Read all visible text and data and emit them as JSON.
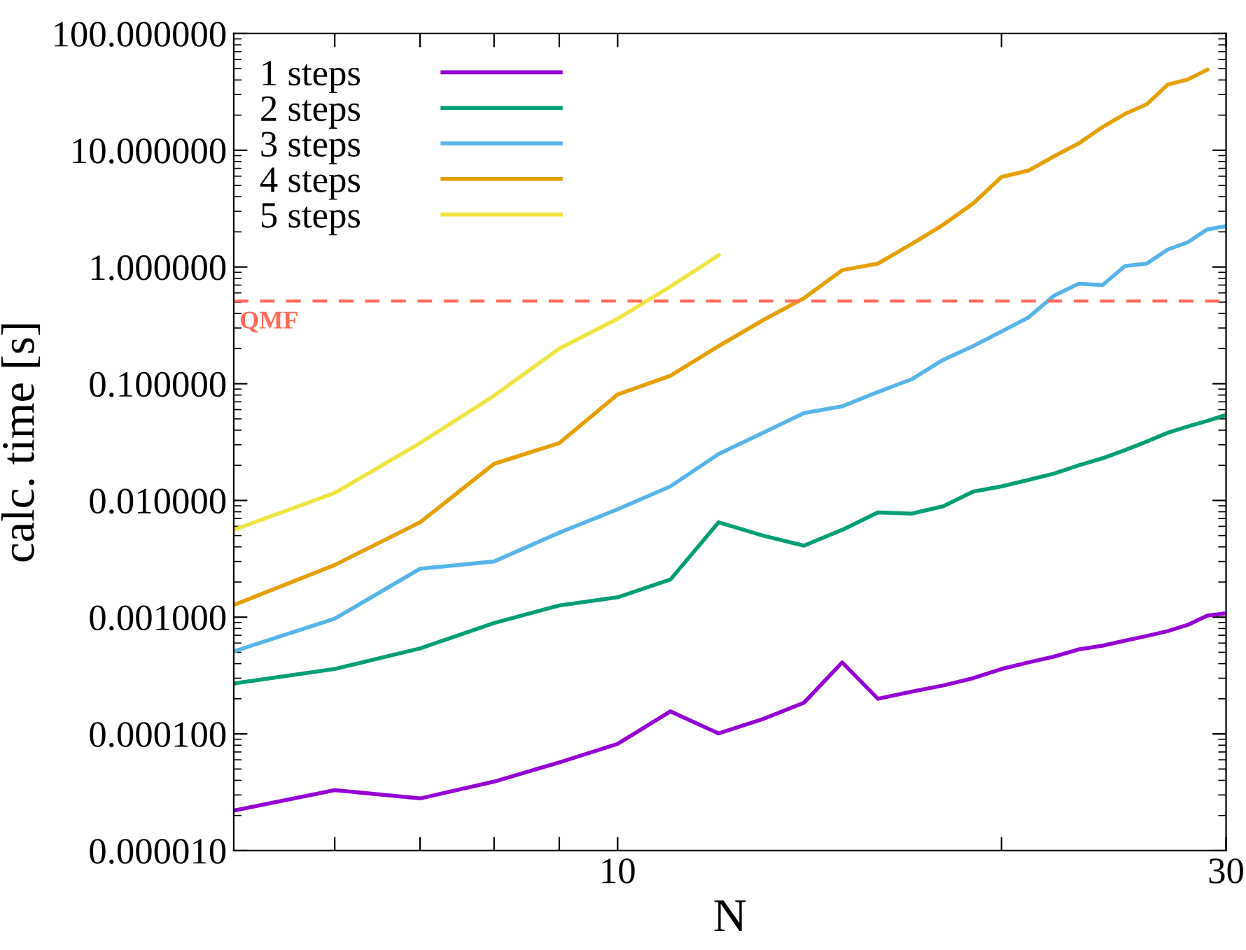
{
  "chart_data": {
    "type": "line",
    "xlabel": "N",
    "ylabel": "calc. time [s]",
    "log": "xy",
    "grid": false,
    "legend": "top left",
    "marker": "none",
    "line_style": "solid",
    "x": [
      5,
      6,
      7,
      8,
      9,
      10,
      11,
      12,
      13,
      14,
      15,
      16,
      17,
      18,
      19,
      20,
      21,
      22,
      23,
      24,
      25,
      26,
      27,
      28,
      29,
      30
    ],
    "xlim": [
      5,
      30
    ],
    "xticks": [
      {
        "value": 6,
        "label": null
      },
      {
        "value": 7,
        "label": null
      },
      {
        "value": 8,
        "label": null
      },
      {
        "value": 9,
        "label": null
      },
      10,
      {
        "value": 20,
        "label": null
      },
      30
    ],
    "ylim": [
      1e-05,
      100
    ],
    "yticks": [
      {
        "value": 1e-05,
        "label": "0.000010"
      },
      {
        "value": 0.0001,
        "label": "0.000100"
      },
      {
        "value": 0.001,
        "label": "0.001000"
      },
      {
        "value": 0.01,
        "label": "0.010000"
      },
      {
        "value": 0.1,
        "label": "0.100000"
      },
      {
        "value": 1,
        "label": "1.000000"
      },
      {
        "value": 10,
        "label": "10.000000"
      },
      {
        "value": 100,
        "label": "100.000000"
      }
    ],
    "series": [
      {
        "name": "1 steps",
        "color": "#9400d3",
        "values": [
          2.2e-05,
          3.3e-05,
          2.8e-05,
          3.9e-05,
          5.7e-05,
          8.2e-05,
          0.000156,
          0.000101,
          0.000134,
          0.000185,
          0.00041,
          0.0002,
          0.00023,
          0.00026,
          0.0003,
          0.00036,
          0.00041,
          0.00046,
          0.00053,
          0.00057,
          0.00063,
          0.00069,
          0.00076,
          0.00086,
          0.00103,
          0.00108
        ]
      },
      {
        "name": "2 steps",
        "color": "#009e73",
        "values": [
          0.00027,
          0.00036,
          0.00054,
          0.00089,
          0.00126,
          0.00148,
          0.0021,
          0.0065,
          0.005,
          0.0041,
          0.0056,
          0.0079,
          0.0077,
          0.0089,
          0.0119,
          0.0132,
          0.015,
          0.017,
          0.02,
          0.023,
          0.027,
          0.032,
          0.038,
          0.043,
          0.048,
          0.054
        ]
      },
      {
        "name": "3 steps",
        "color": "#56b4e9",
        "values": [
          0.00051,
          0.00097,
          0.0026,
          0.003,
          0.0053,
          0.0084,
          0.0132,
          0.025,
          0.038,
          0.056,
          0.064,
          0.085,
          0.109,
          0.16,
          0.21,
          0.28,
          0.37,
          0.57,
          0.72,
          0.7,
          1.02,
          1.07,
          1.41,
          1.63,
          2.1,
          2.24
        ]
      },
      {
        "name": "4 steps",
        "color": "#e69f00",
        "values": [
          0.00127,
          0.0028,
          0.0065,
          0.0206,
          0.031,
          0.081,
          0.117,
          0.21,
          0.35,
          0.54,
          0.94,
          1.07,
          1.57,
          2.3,
          3.5,
          5.9,
          6.7,
          8.9,
          11.5,
          15.8,
          20.5,
          24.8,
          36.5,
          40.4,
          49,
          null
        ]
      },
      {
        "name": "5 steps",
        "color": "#f0e442",
        "values": [
          0.0056,
          0.0116,
          0.031,
          0.079,
          0.2,
          0.36,
          0.68,
          1.26,
          null,
          null,
          null,
          null,
          null,
          null,
          null,
          null,
          null,
          null,
          null,
          null,
          null,
          null,
          null,
          null,
          null,
          null
        ]
      }
    ],
    "ref_lines": [
      {
        "axis": "y",
        "value": 0.51,
        "label": "QMF",
        "color": "#ff6a5a",
        "line_style": "dashed"
      }
    ]
  }
}
